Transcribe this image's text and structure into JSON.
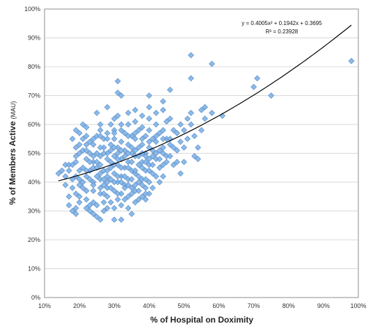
{
  "chart_data": {
    "type": "scatter",
    "title": "",
    "xlabel": "% of Hospital on Doximity",
    "ylabel": "% of Members Active",
    "ylabel_suffix": "(MAU)",
    "xlim": [
      10,
      100
    ],
    "ylim": [
      0,
      100
    ],
    "x_ticks": [
      "10%",
      "20%",
      "30%",
      "40%",
      "50%",
      "60%",
      "70%",
      "80%",
      "90%",
      "100%"
    ],
    "y_ticks": [
      "0%",
      "10%",
      "20%",
      "30%",
      "40%",
      "50%",
      "60%",
      "70%",
      "80%",
      "90%",
      "100%"
    ],
    "grid": "horizontal",
    "legend": "none",
    "marker_color": "#7fb2e6",
    "marker_edge": "#4f86c6",
    "trendline": {
      "type": "polynomial",
      "order": 2,
      "equation_label": "y = 0.4005x² + 0.1942x + 0.3695",
      "r2_label": "R² = 0.23928",
      "x_range": [
        14,
        98
      ],
      "color": "#000000"
    },
    "points": [
      [
        14,
        43
      ],
      [
        16,
        46
      ],
      [
        17,
        46
      ],
      [
        16,
        39
      ],
      [
        18,
        38
      ],
      [
        17,
        35
      ],
      [
        17,
        32
      ],
      [
        18,
        30
      ],
      [
        19,
        29
      ],
      [
        19,
        31
      ],
      [
        20,
        33
      ],
      [
        19,
        36
      ],
      [
        20,
        39
      ],
      [
        18,
        41
      ],
      [
        19,
        42
      ],
      [
        20,
        44
      ],
      [
        19,
        47
      ],
      [
        20,
        50
      ],
      [
        19,
        52
      ],
      [
        21,
        55
      ],
      [
        20,
        57
      ],
      [
        19,
        58
      ],
      [
        21,
        60
      ],
      [
        22,
        59
      ],
      [
        22,
        53
      ],
      [
        23,
        50
      ],
      [
        22,
        48
      ],
      [
        21,
        45
      ],
      [
        22,
        42
      ],
      [
        21,
        40
      ],
      [
        22,
        37
      ],
      [
        22,
        34
      ],
      [
        23,
        32
      ],
      [
        23,
        30
      ],
      [
        24,
        29
      ],
      [
        25,
        28
      ],
      [
        26,
        27
      ],
      [
        24,
        33
      ],
      [
        24,
        37
      ],
      [
        24,
        40
      ],
      [
        23,
        44
      ],
      [
        24,
        47
      ],
      [
        25,
        50
      ],
      [
        24,
        53
      ],
      [
        25,
        56
      ],
      [
        26,
        56
      ],
      [
        26,
        60
      ],
      [
        25,
        64
      ],
      [
        27,
        55
      ],
      [
        27,
        52
      ],
      [
        26,
        49
      ],
      [
        26,
        46
      ],
      [
        27,
        44
      ],
      [
        26,
        41
      ],
      [
        27,
        39
      ],
      [
        26,
        36
      ],
      [
        27,
        33
      ],
      [
        28,
        31
      ],
      [
        28,
        35
      ],
      [
        28,
        38
      ],
      [
        29,
        41
      ],
      [
        28,
        44
      ],
      [
        29,
        47
      ],
      [
        28,
        50
      ],
      [
        29,
        53
      ],
      [
        28,
        57
      ],
      [
        29,
        60
      ],
      [
        28,
        66
      ],
      [
        30,
        62
      ],
      [
        30,
        58
      ],
      [
        30,
        55
      ],
      [
        31,
        52
      ],
      [
        30,
        49
      ],
      [
        31,
        46
      ],
      [
        30,
        43
      ],
      [
        31,
        40
      ],
      [
        30,
        37
      ],
      [
        31,
        34
      ],
      [
        30,
        31
      ],
      [
        30,
        27
      ],
      [
        32,
        27
      ],
      [
        32,
        32
      ],
      [
        32,
        36
      ],
      [
        33,
        39
      ],
      [
        32,
        42
      ],
      [
        33,
        45
      ],
      [
        32,
        48
      ],
      [
        33,
        51
      ],
      [
        32,
        54
      ],
      [
        33,
        57
      ],
      [
        32,
        60
      ],
      [
        31,
        63
      ],
      [
        31,
        71
      ],
      [
        31,
        75
      ],
      [
        32,
        70
      ],
      [
        34,
        64
      ],
      [
        34,
        60
      ],
      [
        35,
        56
      ],
      [
        34,
        53
      ],
      [
        35,
        50
      ],
      [
        34,
        47
      ],
      [
        35,
        44
      ],
      [
        34,
        41
      ],
      [
        35,
        38
      ],
      [
        34,
        35
      ],
      [
        34,
        31
      ],
      [
        35,
        29
      ],
      [
        36,
        33
      ],
      [
        36,
        37
      ],
      [
        37,
        40
      ],
      [
        36,
        43
      ],
      [
        37,
        46
      ],
      [
        36,
        49
      ],
      [
        37,
        52
      ],
      [
        36,
        55
      ],
      [
        37,
        58
      ],
      [
        36,
        61
      ],
      [
        36,
        65
      ],
      [
        38,
        63
      ],
      [
        38,
        59
      ],
      [
        39,
        56
      ],
      [
        38,
        53
      ],
      [
        39,
        50
      ],
      [
        38,
        47
      ],
      [
        39,
        44
      ],
      [
        38,
        41
      ],
      [
        39,
        38
      ],
      [
        38,
        35
      ],
      [
        39,
        34
      ],
      [
        40,
        36
      ],
      [
        40,
        40
      ],
      [
        41,
        43
      ],
      [
        40,
        46
      ],
      [
        41,
        49
      ],
      [
        40,
        52
      ],
      [
        41,
        55
      ],
      [
        40,
        58
      ],
      [
        40,
        62
      ],
      [
        40,
        66
      ],
      [
        40,
        70
      ],
      [
        42,
        64
      ],
      [
        42,
        60
      ],
      [
        43,
        57
      ],
      [
        42,
        54
      ],
      [
        43,
        51
      ],
      [
        42,
        48
      ],
      [
        43,
        45
      ],
      [
        42,
        42
      ],
      [
        44,
        42
      ],
      [
        44,
        46
      ],
      [
        45,
        49
      ],
      [
        44,
        52
      ],
      [
        45,
        55
      ],
      [
        44,
        58
      ],
      [
        45,
        61
      ],
      [
        44,
        65
      ],
      [
        44,
        68
      ],
      [
        46,
        72
      ],
      [
        46,
        62
      ],
      [
        47,
        58
      ],
      [
        46,
        55
      ],
      [
        47,
        52
      ],
      [
        46,
        49
      ],
      [
        47,
        46
      ],
      [
        48,
        47
      ],
      [
        48,
        51
      ],
      [
        49,
        54
      ],
      [
        48,
        57
      ],
      [
        49,
        60
      ],
      [
        49,
        43
      ],
      [
        50,
        47
      ],
      [
        50,
        52
      ],
      [
        51,
        55
      ],
      [
        50,
        58
      ],
      [
        51,
        62
      ],
      [
        52,
        64
      ],
      [
        52,
        76
      ],
      [
        52,
        84
      ],
      [
        52,
        60
      ],
      [
        53,
        56
      ],
      [
        54,
        52
      ],
      [
        53,
        49
      ],
      [
        54,
        48
      ],
      [
        55,
        58
      ],
      [
        55,
        65
      ],
      [
        56,
        66
      ],
      [
        56,
        62
      ],
      [
        58,
        81
      ],
      [
        58,
        64
      ],
      [
        61,
        63
      ],
      [
        70,
        73
      ],
      [
        71,
        76
      ],
      [
        75,
        70
      ],
      [
        98,
        82
      ],
      [
        15,
        44
      ],
      [
        16,
        42
      ],
      [
        17,
        44
      ],
      [
        18,
        46
      ],
      [
        19,
        49
      ],
      [
        21,
        51
      ],
      [
        22,
        56
      ],
      [
        23,
        54
      ],
      [
        24,
        45
      ],
      [
        25,
        42
      ],
      [
        26,
        38
      ],
      [
        27,
        36
      ],
      [
        28,
        42
      ],
      [
        29,
        45
      ],
      [
        30,
        46
      ],
      [
        31,
        48
      ],
      [
        32,
        45
      ],
      [
        33,
        42
      ],
      [
        34,
        45
      ],
      [
        35,
        47
      ],
      [
        36,
        44
      ],
      [
        37,
        42
      ],
      [
        38,
        45
      ],
      [
        39,
        47
      ],
      [
        40,
        44
      ],
      [
        41,
        46
      ],
      [
        20,
        41
      ],
      [
        21,
        38
      ],
      [
        22,
        44
      ],
      [
        23,
        41
      ],
      [
        24,
        39
      ],
      [
        25,
        45
      ],
      [
        26,
        43
      ],
      [
        27,
        41
      ],
      [
        28,
        40
      ],
      [
        29,
        38
      ],
      [
        30,
        40
      ],
      [
        31,
        42
      ],
      [
        32,
        40
      ],
      [
        33,
        38
      ],
      [
        34,
        39
      ],
      [
        35,
        41
      ],
      [
        36,
        39
      ],
      [
        37,
        37
      ],
      [
        38,
        39
      ],
      [
        39,
        41
      ],
      [
        26,
        52
      ],
      [
        27,
        50
      ],
      [
        28,
        48
      ],
      [
        29,
        51
      ],
      [
        30,
        52
      ],
      [
        31,
        50
      ],
      [
        32,
        51
      ],
      [
        33,
        49
      ],
      [
        34,
        50
      ],
      [
        35,
        52
      ],
      [
        36,
        51
      ],
      [
        37,
        49
      ],
      [
        38,
        50
      ],
      [
        39,
        49
      ],
      [
        40,
        48
      ],
      [
        41,
        51
      ],
      [
        42,
        50
      ],
      [
        43,
        48
      ],
      [
        44,
        50
      ],
      [
        45,
        47
      ],
      [
        18,
        55
      ],
      [
        20,
        53
      ],
      [
        22,
        51
      ],
      [
        24,
        55
      ],
      [
        26,
        58
      ],
      [
        28,
        55
      ],
      [
        30,
        57
      ],
      [
        32,
        58
      ],
      [
        34,
        56
      ],
      [
        36,
        57
      ],
      [
        38,
        55
      ],
      [
        40,
        54
      ],
      [
        42,
        56
      ],
      [
        44,
        55
      ],
      [
        46,
        53
      ],
      [
        20,
        35
      ],
      [
        22,
        31
      ],
      [
        25,
        32
      ],
      [
        27,
        30
      ],
      [
        29,
        33
      ],
      [
        31,
        36
      ],
      [
        33,
        34
      ],
      [
        35,
        36
      ],
      [
        37,
        34
      ],
      [
        39,
        36
      ],
      [
        41,
        38
      ],
      [
        43,
        40
      ],
      [
        24,
        49
      ],
      [
        23,
        47
      ],
      [
        25,
        47
      ]
    ]
  }
}
